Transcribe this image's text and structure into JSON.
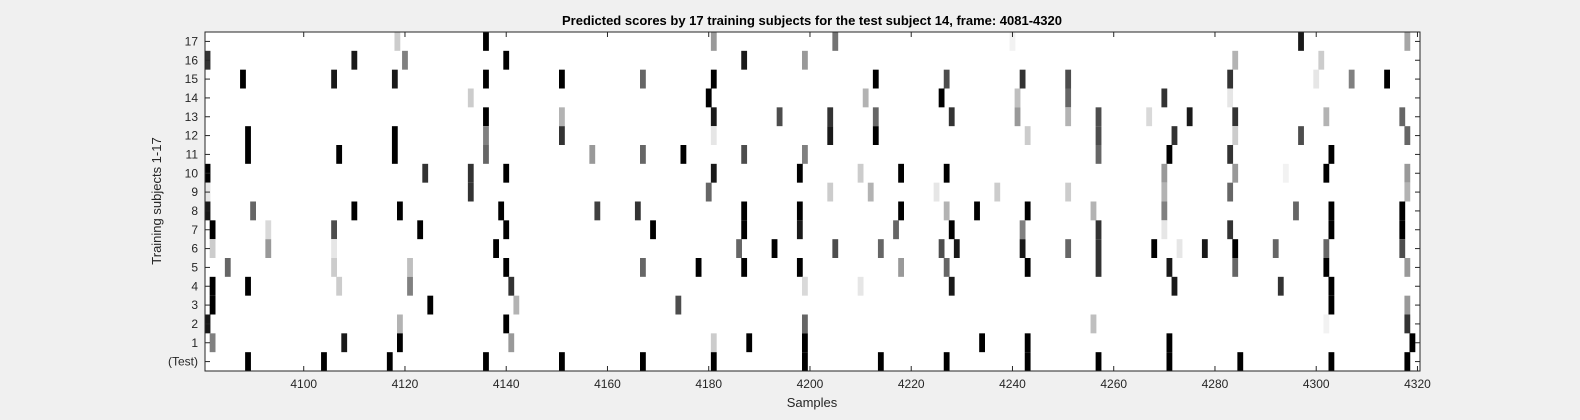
{
  "chart_data": {
    "type": "heatmap",
    "title": "Predicted scores by 17 training subjects for the test subject 14, frame: 4081-4320",
    "xlabel": "Samples",
    "ylabel": "Training subjects 1-17",
    "xlim": [
      4081,
      4320
    ],
    "xticks": [
      4100,
      4120,
      4140,
      4160,
      4180,
      4200,
      4220,
      4240,
      4260,
      4280,
      4300,
      4320
    ],
    "rows": [
      "(Test)",
      "1",
      "2",
      "3",
      "4",
      "5",
      "6",
      "7",
      "8",
      "9",
      "10",
      "11",
      "12",
      "13",
      "14",
      "15",
      "16",
      "17"
    ],
    "colormap": "gray (black = high score, white = low score)",
    "grid": false,
    "legend": "none",
    "events": [
      {
        "row": "17",
        "marks": [
          [
            4118.5,
            0.2
          ],
          [
            4136,
            1
          ],
          [
            4181,
            0.4
          ],
          [
            4205,
            0.55
          ],
          [
            4240,
            0.05
          ],
          [
            4297,
            0.9
          ],
          [
            4318,
            0.35
          ]
        ]
      },
      {
        "row": "16",
        "marks": [
          [
            4081,
            0.8
          ],
          [
            4110,
            0.9
          ],
          [
            4120,
            0.5
          ],
          [
            4140,
            1
          ],
          [
            4187,
            0.9
          ],
          [
            4199,
            0.4
          ],
          [
            4284,
            0.3
          ],
          [
            4301,
            0.2
          ]
        ]
      },
      {
        "row": "15",
        "marks": [
          [
            4088,
            1
          ],
          [
            4106,
            0.9
          ],
          [
            4118,
            0.9
          ],
          [
            4136,
            1
          ],
          [
            4151,
            1
          ],
          [
            4167,
            0.6
          ],
          [
            4181,
            1
          ],
          [
            4213,
            1
          ],
          [
            4227,
            0.7
          ],
          [
            4242,
            0.8
          ],
          [
            4251,
            0.7
          ],
          [
            4283,
            0.8
          ],
          [
            4300,
            0.1
          ],
          [
            4307,
            0.5
          ],
          [
            4314,
            1
          ]
        ]
      },
      {
        "row": "14",
        "marks": [
          [
            4133,
            0.2
          ],
          [
            4180,
            1
          ],
          [
            4211,
            0.3
          ],
          [
            4226,
            1
          ],
          [
            4241,
            0.25
          ],
          [
            4251,
            0.6
          ],
          [
            4270,
            0.8
          ],
          [
            4283,
            0.1
          ]
        ]
      },
      {
        "row": "13",
        "marks": [
          [
            4136,
            1
          ],
          [
            4151,
            0.3
          ],
          [
            4181,
            0.9
          ],
          [
            4194,
            0.7
          ],
          [
            4204,
            0.8
          ],
          [
            4213,
            0.6
          ],
          [
            4228,
            0.8
          ],
          [
            4241,
            0.4
          ],
          [
            4251,
            0.3
          ],
          [
            4257,
            0.7
          ],
          [
            4267,
            0.15
          ],
          [
            4275,
            0.9
          ],
          [
            4284,
            0.8
          ],
          [
            4302,
            0.3
          ],
          [
            4317,
            0.6
          ]
        ]
      },
      {
        "row": "12",
        "marks": [
          [
            4089,
            1
          ],
          [
            4118,
            1
          ],
          [
            4136,
            0.5
          ],
          [
            4151,
            0.8
          ],
          [
            4181,
            0.1
          ],
          [
            4204,
            0.9
          ],
          [
            4213,
            1
          ],
          [
            4243,
            0.2
          ],
          [
            4257,
            0.7
          ],
          [
            4272,
            0.8
          ],
          [
            4284,
            0.2
          ],
          [
            4297,
            0.7
          ],
          [
            4318,
            0.6
          ]
        ]
      },
      {
        "row": "11",
        "marks": [
          [
            4089,
            1
          ],
          [
            4107,
            1
          ],
          [
            4118,
            1
          ],
          [
            4136,
            0.6
          ],
          [
            4157,
            0.4
          ],
          [
            4167,
            0.6
          ],
          [
            4175,
            1
          ],
          [
            4187,
            0.7
          ],
          [
            4199,
            0.5
          ],
          [
            4257,
            0.6
          ],
          [
            4271,
            1
          ],
          [
            4283,
            0.8
          ],
          [
            4303,
            1
          ]
        ]
      },
      {
        "row": "10",
        "marks": [
          [
            4081,
            1
          ],
          [
            4124,
            0.8
          ],
          [
            4133,
            0.8
          ],
          [
            4140,
            1
          ],
          [
            4181,
            0.9
          ],
          [
            4198,
            1
          ],
          [
            4210,
            0.2
          ],
          [
            4218,
            1
          ],
          [
            4227,
            1
          ],
          [
            4270,
            0.4
          ],
          [
            4284,
            0.4
          ],
          [
            4294,
            0.05
          ],
          [
            4302,
            1
          ],
          [
            4318,
            0.4
          ]
        ]
      },
      {
        "row": "9",
        "marks": [
          [
            4081,
            0.1
          ],
          [
            4133,
            0.8
          ],
          [
            4180,
            0.6
          ],
          [
            4204,
            0.2
          ],
          [
            4212,
            0.3
          ],
          [
            4225,
            0.1
          ],
          [
            4237,
            0.2
          ],
          [
            4251,
            0.2
          ],
          [
            4270,
            0.3
          ],
          [
            4283,
            0.6
          ],
          [
            4318,
            0.3
          ]
        ]
      },
      {
        "row": "8",
        "marks": [
          [
            4081,
            0.9
          ],
          [
            4090,
            0.6
          ],
          [
            4110,
            1
          ],
          [
            4119,
            1
          ],
          [
            4139,
            1
          ],
          [
            4158,
            0.75
          ],
          [
            4166,
            0.8
          ],
          [
            4187,
            1
          ],
          [
            4198,
            1
          ],
          [
            4218,
            1
          ],
          [
            4227,
            0.3
          ],
          [
            4233,
            1
          ],
          [
            4243,
            1
          ],
          [
            4256,
            0.3
          ],
          [
            4270,
            0.5
          ],
          [
            4296,
            0.6
          ],
          [
            4303,
            1
          ],
          [
            4317,
            1
          ]
        ]
      },
      {
        "row": "7",
        "marks": [
          [
            4082,
            1
          ],
          [
            4093,
            0.15
          ],
          [
            4106,
            0.7
          ],
          [
            4123,
            1
          ],
          [
            4140,
            1
          ],
          [
            4169,
            1
          ],
          [
            4187,
            1
          ],
          [
            4198,
            0.9
          ],
          [
            4217,
            0.6
          ],
          [
            4228,
            1
          ],
          [
            4242,
            0.5
          ],
          [
            4257,
            0.8
          ],
          [
            4270,
            0.1
          ],
          [
            4283,
            0.8
          ],
          [
            4303,
            1
          ],
          [
            4317,
            1
          ]
        ]
      },
      {
        "row": "6",
        "marks": [
          [
            4082,
            0.2
          ],
          [
            4093,
            0.4
          ],
          [
            4106,
            0.1
          ],
          [
            4138,
            1
          ],
          [
            4186,
            0.6
          ],
          [
            4193,
            1
          ],
          [
            4205,
            0.7
          ],
          [
            4214,
            0.6
          ],
          [
            4226,
            0.7
          ],
          [
            4229,
            0.9
          ],
          [
            4242,
            0.9
          ],
          [
            4251,
            0.6
          ],
          [
            4257,
            0.8
          ],
          [
            4268,
            1
          ],
          [
            4273,
            0.1
          ],
          [
            4278,
            0.9
          ],
          [
            4284,
            1
          ],
          [
            4292,
            0.6
          ],
          [
            4302,
            0.6
          ],
          [
            4317,
            0.7
          ]
        ]
      },
      {
        "row": "5",
        "marks": [
          [
            4085,
            0.6
          ],
          [
            4106,
            0.2
          ],
          [
            4121,
            0.25
          ],
          [
            4140,
            1
          ],
          [
            4167,
            0.6
          ],
          [
            4178,
            1
          ],
          [
            4187,
            1
          ],
          [
            4198,
            1
          ],
          [
            4218,
            0.4
          ],
          [
            4227,
            0.6
          ],
          [
            4243,
            1
          ],
          [
            4257,
            0.8
          ],
          [
            4271,
            0.9
          ],
          [
            4284,
            0.6
          ],
          [
            4302,
            1
          ],
          [
            4318,
            0.4
          ]
        ]
      },
      {
        "row": "4",
        "marks": [
          [
            4082,
            1
          ],
          [
            4089,
            1
          ],
          [
            4107,
            0.2
          ],
          [
            4121,
            0.5
          ],
          [
            4141,
            0.8
          ],
          [
            4199,
            0.15
          ],
          [
            4210,
            0.1
          ],
          [
            4228,
            0.9
          ],
          [
            4272,
            0.9
          ],
          [
            4293,
            0.8
          ],
          [
            4303,
            1
          ]
        ]
      },
      {
        "row": "3",
        "marks": [
          [
            4082,
            1
          ],
          [
            4125,
            1
          ],
          [
            4142,
            0.3
          ],
          [
            4174,
            0.7
          ],
          [
            4303,
            1
          ],
          [
            4318,
            0.4
          ]
        ]
      },
      {
        "row": "2",
        "marks": [
          [
            4081,
            0.9
          ],
          [
            4119,
            0.3
          ],
          [
            4140,
            1
          ],
          [
            4199,
            0.6
          ],
          [
            4256,
            0.25
          ],
          [
            4302,
            0.05
          ],
          [
            4318,
            0.8
          ]
        ]
      },
      {
        "row": "1",
        "marks": [
          [
            4082,
            0.5
          ],
          [
            4108,
            0.9
          ],
          [
            4119,
            1
          ],
          [
            4141,
            0.4
          ],
          [
            4181,
            0.2
          ],
          [
            4188,
            1
          ],
          [
            4199,
            1
          ],
          [
            4234,
            1
          ],
          [
            4243,
            1
          ],
          [
            4271,
            1
          ],
          [
            4319,
            1
          ]
        ]
      },
      {
        "row": "(Test)",
        "marks": [
          [
            4089,
            1
          ],
          [
            4104,
            1
          ],
          [
            4117,
            1
          ],
          [
            4136,
            1
          ],
          [
            4151,
            1
          ],
          [
            4167,
            1
          ],
          [
            4181,
            1
          ],
          [
            4199,
            1
          ],
          [
            4214,
            1
          ],
          [
            4227,
            1
          ],
          [
            4243,
            1
          ],
          [
            4257,
            1
          ],
          [
            4271,
            1
          ],
          [
            4285,
            1
          ],
          [
            4303,
            1
          ],
          [
            4318,
            1
          ]
        ]
      }
    ]
  },
  "colors": {
    "figure_background": "#f0f0f0",
    "axes_background": "#ffffff",
    "axes_line": "#262626"
  }
}
